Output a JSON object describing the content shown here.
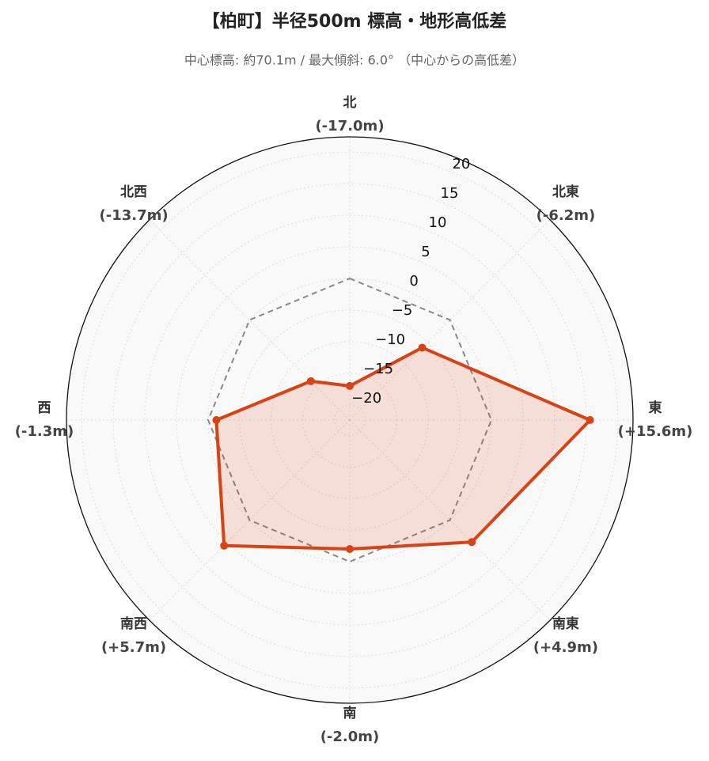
{
  "chart_data": {
    "type": "radar",
    "title": "【柏町】半径500m 標高・地形高低差",
    "subtitle": "中心標高: 約70.1m / 最大傾斜: 6.0° （中心からの高低差）",
    "categories": [
      "北",
      "北東",
      "東",
      "南東",
      "南",
      "南西",
      "西",
      "北西"
    ],
    "series": [
      {
        "color": "#d84315",
        "values": [
          -17.0,
          -6.2,
          15.6,
          4.9,
          -2.0,
          5.7,
          -1.3,
          -13.7
        ],
        "value_labels": [
          "(-17.0m)",
          "(-6.2m)",
          "(+15.6m)",
          "(+4.9m)",
          "(-2.0m)",
          "(+5.7m)",
          "(-1.3m)",
          "(-13.7m)"
        ]
      },
      {
        "color": "#888888",
        "values": [
          0,
          0,
          0,
          0,
          0,
          0,
          0,
          0
        ]
      }
    ],
    "rlim": [
      -22.4,
      22.4
    ],
    "rticks": [
      {
        "value": -20,
        "label": "−20"
      },
      {
        "value": -15,
        "label": "−15"
      },
      {
        "value": -10,
        "label": "−10"
      },
      {
        "value": -5,
        "label": "−5"
      },
      0,
      5,
      10,
      15,
      20
    ],
    "grid": true
  }
}
